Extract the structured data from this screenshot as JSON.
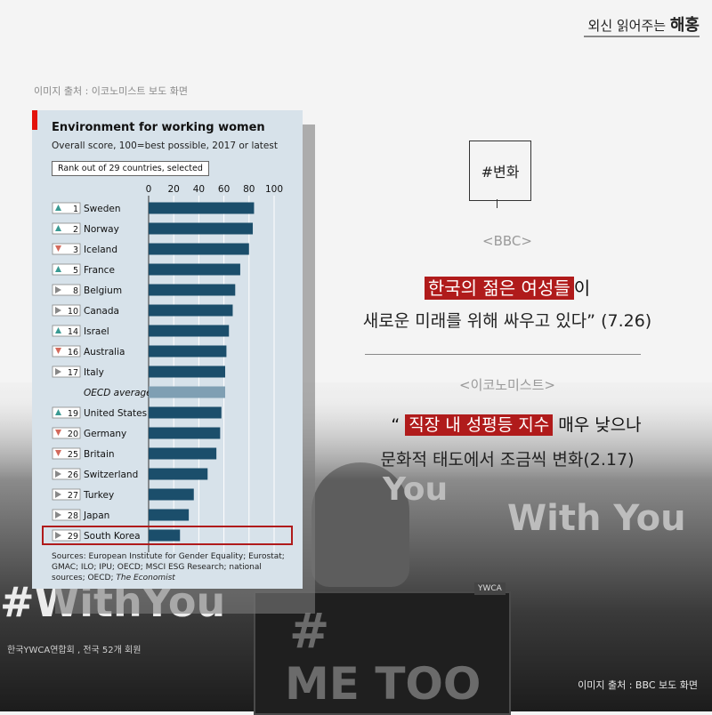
{
  "brand": {
    "prefix": "외신 읽어주는",
    "name": "해홍"
  },
  "credits": {
    "top": "이미지 출처 : 이코노미스트 보도 화면",
    "bottom": "이미지 출처 : BBC 보도 화면"
  },
  "chart_data": {
    "type": "bar",
    "title": "Environment for working women",
    "subtitle": "Overall score, 100=best possible, 2017 or latest",
    "rank_label": "Rank out of 29 countries, selected",
    "xlim": [
      0,
      100
    ],
    "ticks": [
      0,
      20,
      40,
      60,
      80,
      100
    ],
    "rows": [
      {
        "rank": "1",
        "dir": "up",
        "label": "Sweden",
        "value": 84
      },
      {
        "rank": "2",
        "dir": "up",
        "label": "Norway",
        "value": 83
      },
      {
        "rank": "3",
        "dir": "down",
        "label": "Iceland",
        "value": 80
      },
      {
        "rank": "5",
        "dir": "up",
        "label": "France",
        "value": 73
      },
      {
        "rank": "8",
        "dir": "flat",
        "label": "Belgium",
        "value": 69
      },
      {
        "rank": "10",
        "dir": "flat",
        "label": "Canada",
        "value": 67
      },
      {
        "rank": "14",
        "dir": "up",
        "label": "Israel",
        "value": 64
      },
      {
        "rank": "16",
        "dir": "down",
        "label": "Australia",
        "value": 62
      },
      {
        "rank": "17",
        "dir": "flat",
        "label": "Italy",
        "value": 61
      },
      {
        "rank": "",
        "dir": "none",
        "label": "OECD average",
        "value": 61,
        "avg": true
      },
      {
        "rank": "19",
        "dir": "up",
        "label": "United States",
        "value": 58
      },
      {
        "rank": "20",
        "dir": "down",
        "label": "Germany",
        "value": 57
      },
      {
        "rank": "25",
        "dir": "down",
        "label": "Britain",
        "value": 54
      },
      {
        "rank": "26",
        "dir": "flat",
        "label": "Switzerland",
        "value": 47
      },
      {
        "rank": "27",
        "dir": "flat",
        "label": "Turkey",
        "value": 36
      },
      {
        "rank": "28",
        "dir": "flat",
        "label": "Japan",
        "value": 32
      },
      {
        "rank": "29",
        "dir": "flat",
        "label": "South Korea",
        "value": 25,
        "highlight": true
      }
    ],
    "sources": "Sources: European Institute for Gender Equality; Eurostat; GMAC; ILO; IPU; OECD; MSCI ESG Research; national sources; OECD;",
    "sources_pub": "The Economist",
    "colors": {
      "bar": "#1b4e6b",
      "avg": "#7f9fb3",
      "up": "#3a9a93",
      "down": "#d36a5c",
      "flat": "#888888",
      "highlight": "#b01b1b"
    }
  },
  "right": {
    "hashtag": "#변화",
    "bbc_label": "<BBC>",
    "q1_highlight": "한국의 젊은 여성들",
    "q1_rest": "이",
    "q1_line2": "새로운 미래를 위해 싸우고 있다” (7.26)",
    "eco_label": "<이코노미스트>",
    "q2_open": "“",
    "q2_highlight": "직장 내 성평등 지수",
    "q2_rest": " 매우 낮으나",
    "q2_line2": "문화적 태도에서 조금씩 변화(2.17)"
  },
  "photo_text": {
    "withyou_left": "#WithYou",
    "withyou_right": "With You",
    "you_mid": "You",
    "metoo_hash": "#",
    "metoo": "ME TOO",
    "ywca": "YWCA",
    "ywca_left": "한국YWCA연합회 , 전국 52개 회원"
  }
}
